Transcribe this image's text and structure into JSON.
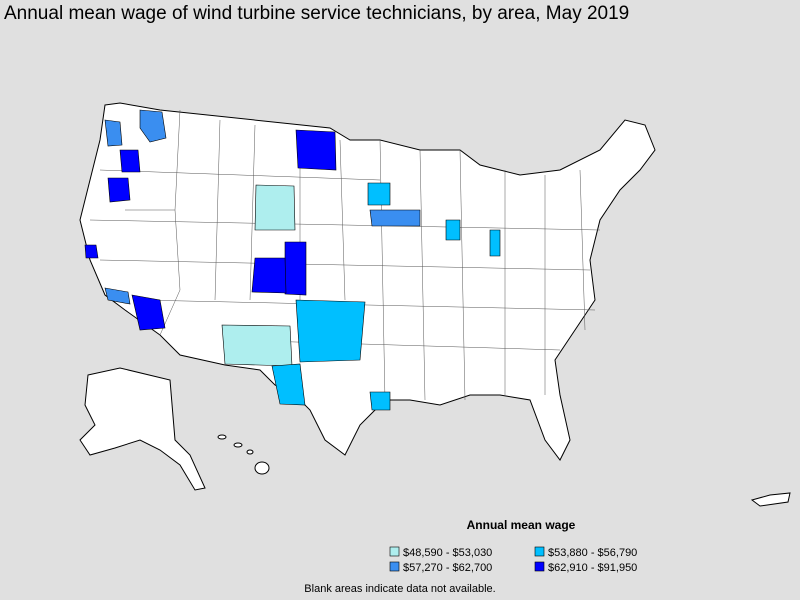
{
  "title": "Annual mean wage of wind turbine service technicians, by area, May 2019",
  "legend": {
    "title": "Annual mean wage",
    "items": [
      {
        "label": "$48,590 - $53,030",
        "color": "#aeeeee"
      },
      {
        "label": "$53,880 - $56,790",
        "color": "#00bfff"
      },
      {
        "label": "$57,270 - $62,700",
        "color": "#3a8ef0"
      },
      {
        "label": "$62,910 - $91,950",
        "color": "#0000ff"
      }
    ]
  },
  "note": "Blank areas indicate data not available."
}
